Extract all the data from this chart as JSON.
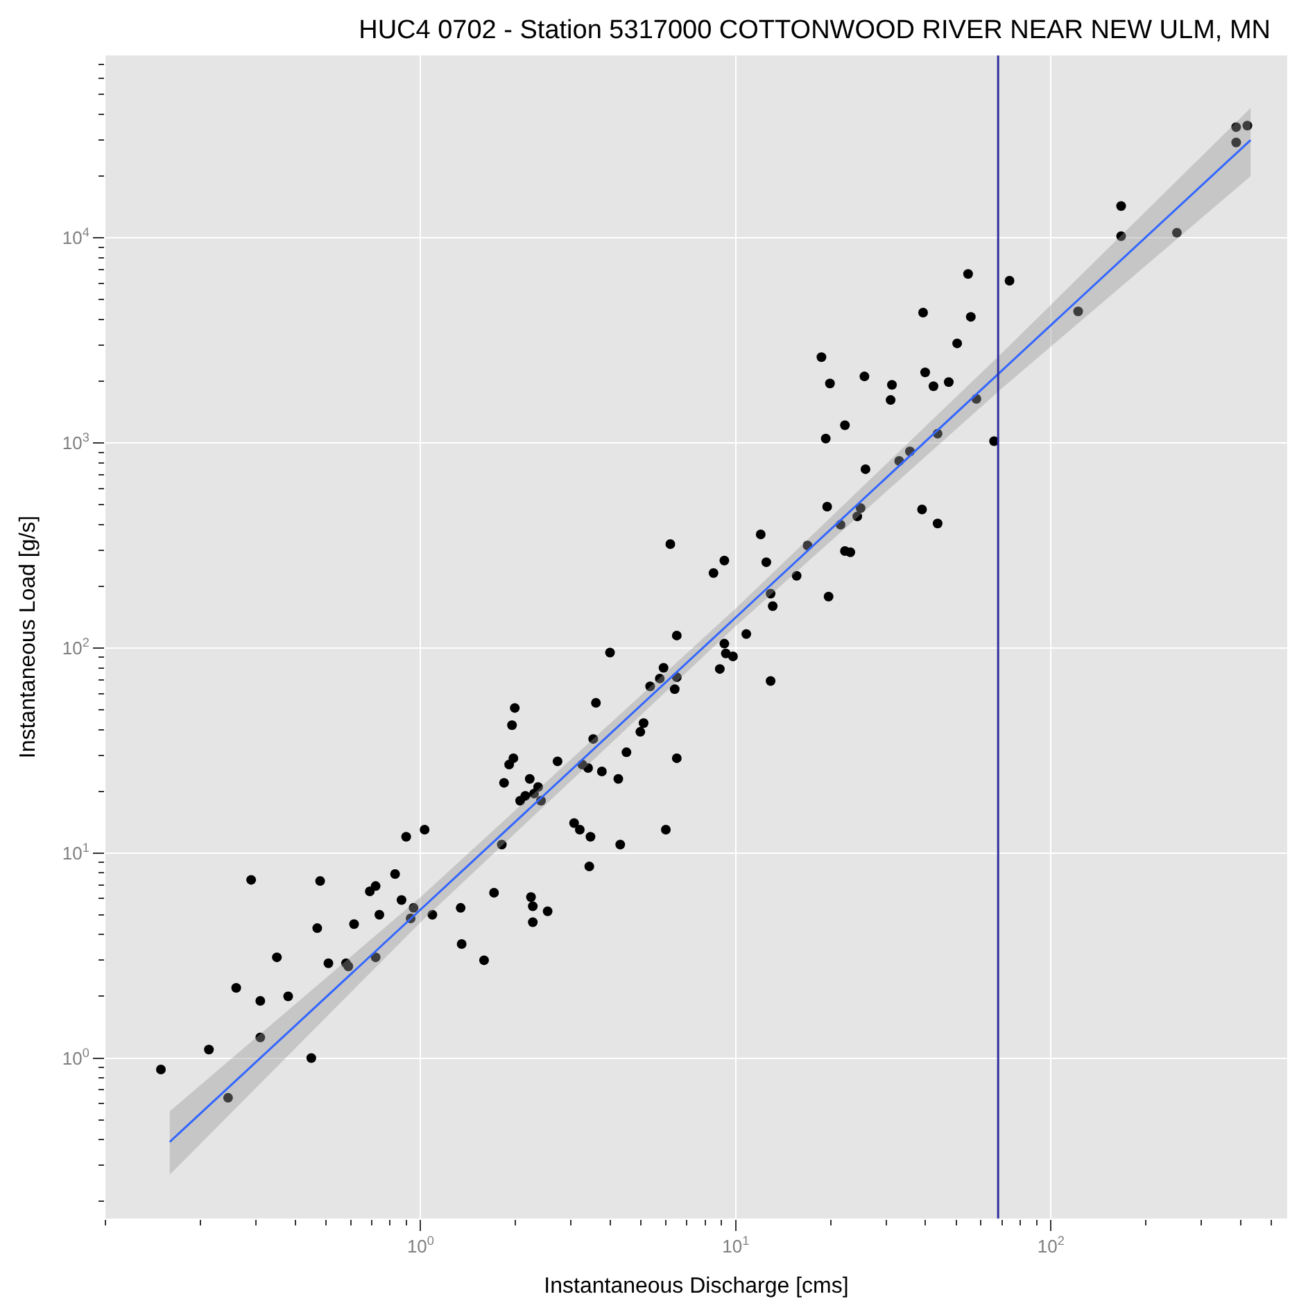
{
  "chart_data": {
    "type": "scatter",
    "title": "HUC4 0702 - Station 5317000 COTTONWOOD RIVER NEAR NEW ULM, MN",
    "xlabel": "Instantaneous Discharge [cms]",
    "ylabel": "Instantaneous Load [g/s]",
    "log": "xy",
    "grid": true,
    "xlim": [
      0.1,
      562
    ],
    "ylim": [
      0.165,
      77600
    ],
    "xticks": [
      {
        "value": 1,
        "label": "10$^{0}$"
      },
      {
        "value": 10,
        "label": "10$^{1}$"
      },
      {
        "value": 100,
        "label": "10$^{2}$"
      }
    ],
    "yticks": [
      {
        "value": 1,
        "label": "10$^{0}$"
      },
      {
        "value": 10,
        "label": "10$^{1}$"
      },
      {
        "value": 100,
        "label": "10$^{2}$"
      },
      {
        "value": 1000,
        "label": "10$^{3}$"
      },
      {
        "value": 10000,
        "label": "10$^{4}$"
      }
    ],
    "ref_lines": [
      {
        "axis": "x",
        "value": 68,
        "color": "#2e2e9e"
      }
    ],
    "series": [
      {
        "marker": "circle",
        "color": "#000000",
        "x": [
          0.15,
          0.213,
          0.245,
          0.26,
          0.29,
          0.31,
          0.31,
          0.35,
          0.38,
          0.45,
          0.47,
          0.48,
          0.51,
          0.58,
          0.59,
          0.615,
          0.69,
          0.72,
          0.74,
          0.72,
          0.83,
          0.87,
          0.9,
          0.93,
          0.95,
          1.03,
          1.09,
          1.34,
          1.35,
          1.59,
          1.71,
          1.81,
          1.84,
          1.91,
          1.95,
          1.99,
          1.97,
          2.07,
          2.15,
          2.22,
          2.29,
          2.27,
          2.27,
          2.24,
          2.36,
          2.41,
          2.53,
          2.72,
          3.07,
          3.2,
          3.26,
          3.4,
          3.43,
          3.46,
          3.53,
          3.6,
          3.76,
          3.99,
          4.24,
          4.3,
          4.5,
          4.98,
          5.1,
          5.35,
          5.74,
          5.9,
          6.0,
          6.2,
          6.5,
          6.5,
          6.4,
          6.5,
          8.5,
          9.2,
          8.9,
          9.2,
          9.3,
          9.8,
          10.8,
          12,
          12.5,
          12.9,
          13.1,
          12.9,
          15.6,
          16.9,
          19.7,
          19.5,
          21.5,
          22.2,
          23.1,
          24.3,
          24.9,
          25.8,
          18.7,
          19.9,
          19.3,
          22.2,
          25.6,
          31,
          31.3,
          33,
          35.7,
          39,
          39.3,
          39.9,
          42.4,
          43.7,
          43.7,
          47.4,
          50.4,
          54.6,
          55.7,
          58,
          66,
          73.9,
          122,
          167,
          167,
          251,
          387,
          387,
          420
        ],
        "values": [
          0.88,
          1.1,
          0.64,
          2.2,
          7.4,
          1.9,
          1.26,
          3.1,
          2.0,
          1.0,
          4.3,
          7.3,
          2.9,
          2.9,
          2.8,
          4.5,
          6.5,
          6.9,
          5.0,
          3.1,
          7.9,
          5.9,
          12,
          4.8,
          5.4,
          13,
          5.0,
          5.4,
          3.6,
          3.0,
          6.4,
          11,
          22,
          27,
          42,
          51,
          29,
          18,
          19,
          23,
          19.5,
          5.5,
          4.6,
          6.1,
          21,
          18,
          5.2,
          28,
          14,
          13,
          27,
          26,
          8.6,
          12,
          36,
          54,
          25,
          95,
          23,
          11,
          31,
          39,
          43,
          65,
          71,
          80,
          13,
          321,
          115,
          72,
          63,
          29,
          232,
          267,
          79,
          105,
          94,
          91,
          117,
          358,
          262,
          184,
          160,
          69,
          225,
          316,
          178,
          489,
          399,
          297,
          293,
          438,
          481,
          745,
          2620,
          1950,
          1050,
          1220,
          2110,
          1620,
          1920,
          817,
          910,
          474,
          4320,
          2210,
          1890,
          1110,
          405,
          1980,
          3060,
          6670,
          4120,
          1640,
          1020,
          6180,
          4380,
          14300,
          10200,
          10600,
          29200,
          34700,
          35300
        ]
      },
      {
        "type": "line",
        "marker": "none",
        "color": "#3366ff",
        "x": [
          0.16,
          1,
          10,
          70,
          430
        ],
        "values": [
          0.39,
          5.3,
          141,
          2260,
          30000
        ],
        "lower": [
          0.27,
          4.6,
          128,
          1850,
          20000
        ],
        "upper": [
          0.55,
          6.1,
          156,
          2750,
          43000
        ]
      }
    ]
  }
}
